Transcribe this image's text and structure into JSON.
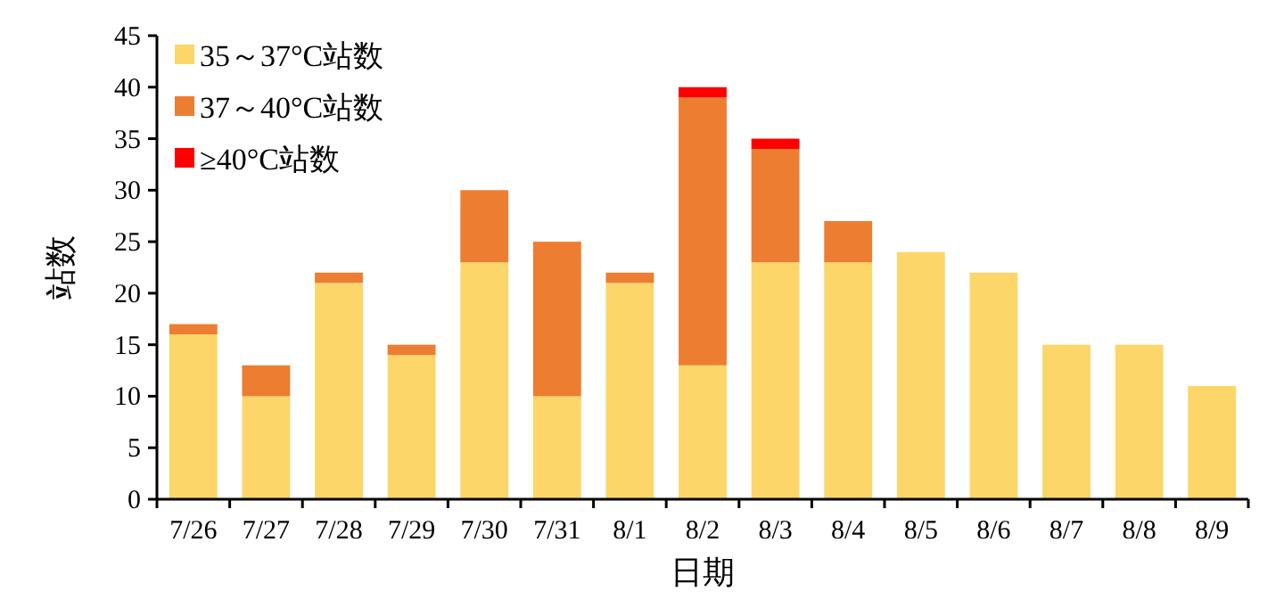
{
  "chart_data": {
    "type": "bar",
    "stacked": true,
    "xlabel": "日期",
    "ylabel": "站数",
    "categories": [
      "7/26",
      "7/27",
      "7/28",
      "7/29",
      "7/30",
      "7/31",
      "8/1",
      "8/2",
      "8/3",
      "8/4",
      "8/5",
      "8/6",
      "8/7",
      "8/8",
      "8/9"
    ],
    "series": [
      {
        "name": "35～37°C站数",
        "color": "#fdd66a",
        "values": [
          16,
          10,
          21,
          14,
          23,
          10,
          21,
          13,
          23,
          23,
          24,
          22,
          15,
          15,
          11
        ]
      },
      {
        "name": "37～40°C站数",
        "color": "#ed7d31",
        "values": [
          1,
          3,
          1,
          1,
          7,
          15,
          1,
          26,
          11,
          4,
          null,
          null,
          null,
          null,
          null
        ]
      },
      {
        "name": "≥40°C站数",
        "color": "#ff0000",
        "values": [
          null,
          null,
          null,
          null,
          null,
          null,
          null,
          1,
          1,
          null,
          null,
          null,
          null,
          null,
          null
        ]
      }
    ],
    "ylim": [
      0,
      45
    ],
    "yticks": [
      0,
      5,
      10,
      15,
      20,
      25,
      30,
      35,
      40,
      45
    ],
    "grid": false,
    "legend": "top left"
  }
}
